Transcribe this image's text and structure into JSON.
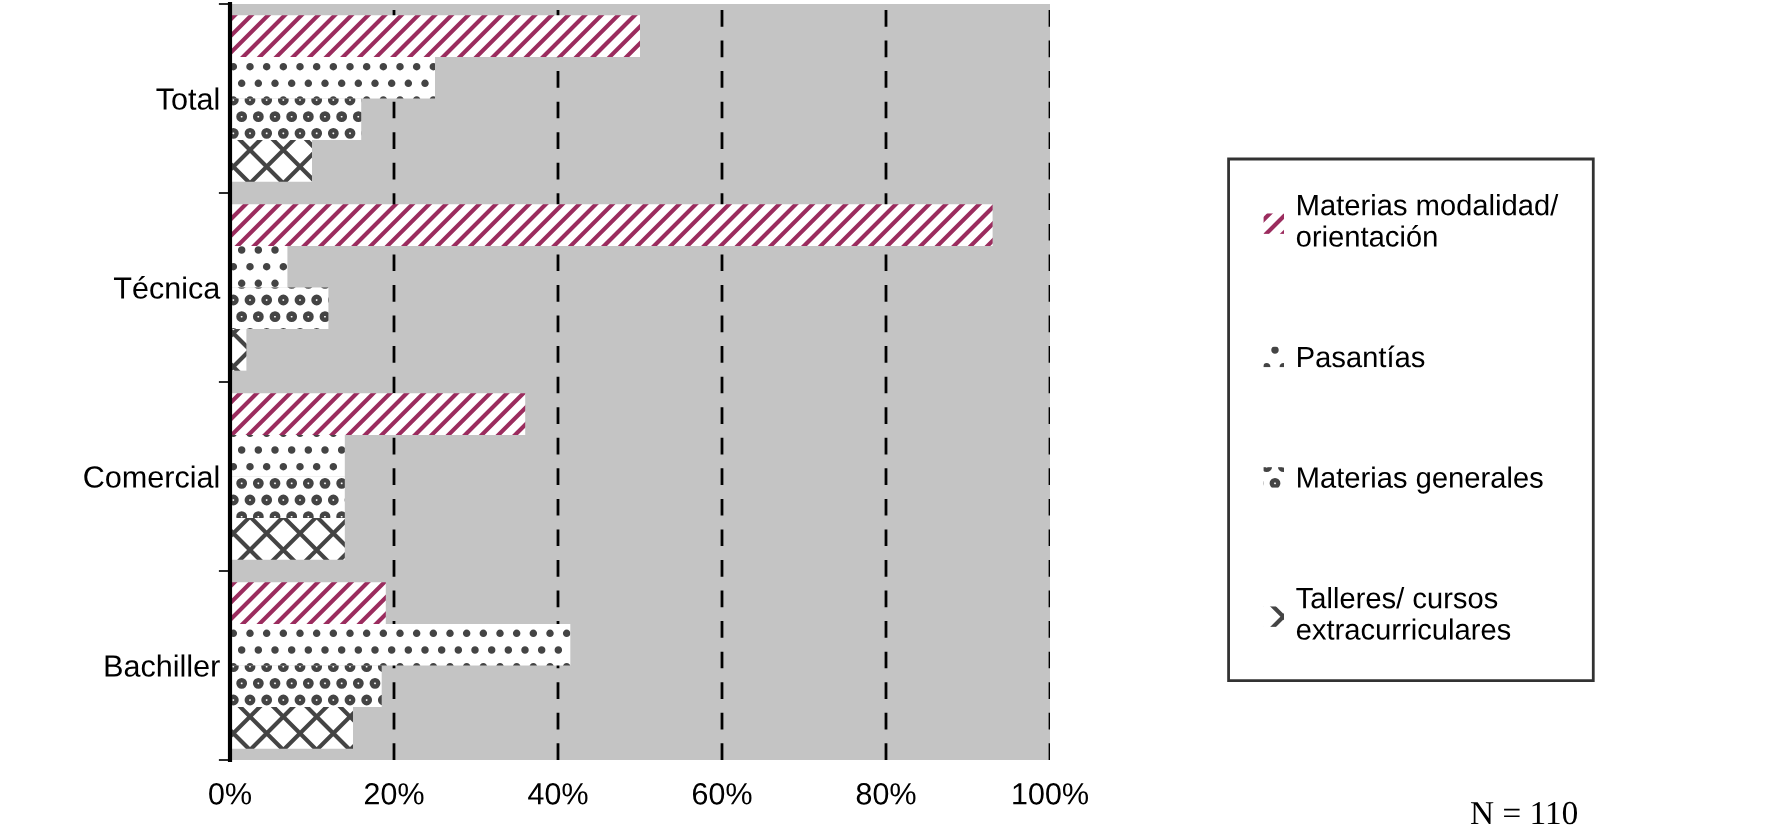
{
  "chart_data": {
    "type": "bar",
    "orientation": "horizontal",
    "categories": [
      "Total",
      "Técnica",
      "Comercial",
      "Bachiller"
    ],
    "series": [
      {
        "name": "Materias modalidad/\norientación",
        "color": "#9b2c5e",
        "values": [
          50,
          93,
          36,
          19
        ]
      },
      {
        "name": "Pasantías",
        "color": "#ffffff",
        "values": [
          25,
          7,
          14,
          41.5
        ]
      },
      {
        "name": "Materias generales",
        "color": "#ffffff",
        "values": [
          16,
          12,
          14,
          18.5
        ]
      },
      {
        "name": "Talleres/ cursos\nextracurriculares",
        "color": "#ffffff",
        "values": [
          10,
          2,
          14,
          15
        ]
      }
    ],
    "xlim": [
      0,
      100
    ],
    "xticks": [
      {
        "value": 0,
        "label": "0%"
      },
      {
        "value": 20,
        "label": "20%"
      },
      {
        "value": 40,
        "label": "40%"
      },
      {
        "value": 60,
        "label": "60%"
      },
      {
        "value": 80,
        "label": "80%"
      },
      {
        "value": 100,
        "label": "100%"
      }
    ],
    "grid": "x",
    "legend": "right",
    "annotations": [
      "N = 110"
    ]
  }
}
